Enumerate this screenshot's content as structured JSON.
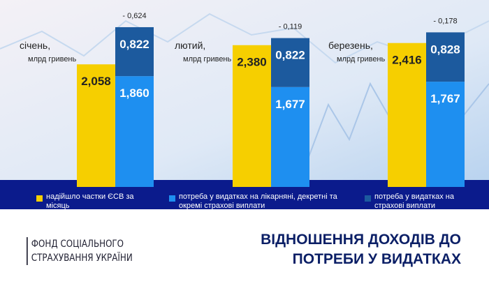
{
  "chart_data": {
    "type": "bar",
    "categories": [
      "січень,",
      "лютий,",
      "березень,"
    ],
    "unit_label": "млрд гривень",
    "series": [
      {
        "name": "надійшло частки ЄСВ за місяць",
        "color": "#f6cf00",
        "values": [
          2.058,
          2.38,
          2.416
        ],
        "value_labels": [
          "2,058",
          "2,380",
          "2,416"
        ]
      },
      {
        "name": "потреба у видатках на лікарняні, декретні та окремі страхові виплати",
        "color": "#1e8ff0",
        "values": [
          1.86,
          1.677,
          1.767
        ],
        "value_labels": [
          "1,860",
          "1,677",
          "1,767"
        ],
        "stack": "need"
      },
      {
        "name": "потреба у видатках на страхові виплати",
        "color": "#1c5a9e",
        "values": [
          0.822,
          0.822,
          0.828
        ],
        "value_labels": [
          "0,822",
          "0,822",
          "0,828"
        ],
        "stack": "need"
      }
    ],
    "annotations": [
      "- 0,624",
      "- 0,119",
      "- 0,178"
    ]
  },
  "footer": {
    "organization_lines": [
      "ФОНД СОЦІАЛЬНОГО",
      "СТРАХУВАННЯ УКРАЇНИ"
    ],
    "title_lines": [
      "ВІДНОШЕННЯ ДОХОДІВ ДО",
      "ПОТРЕБИ У ВИДАТКАХ"
    ]
  }
}
